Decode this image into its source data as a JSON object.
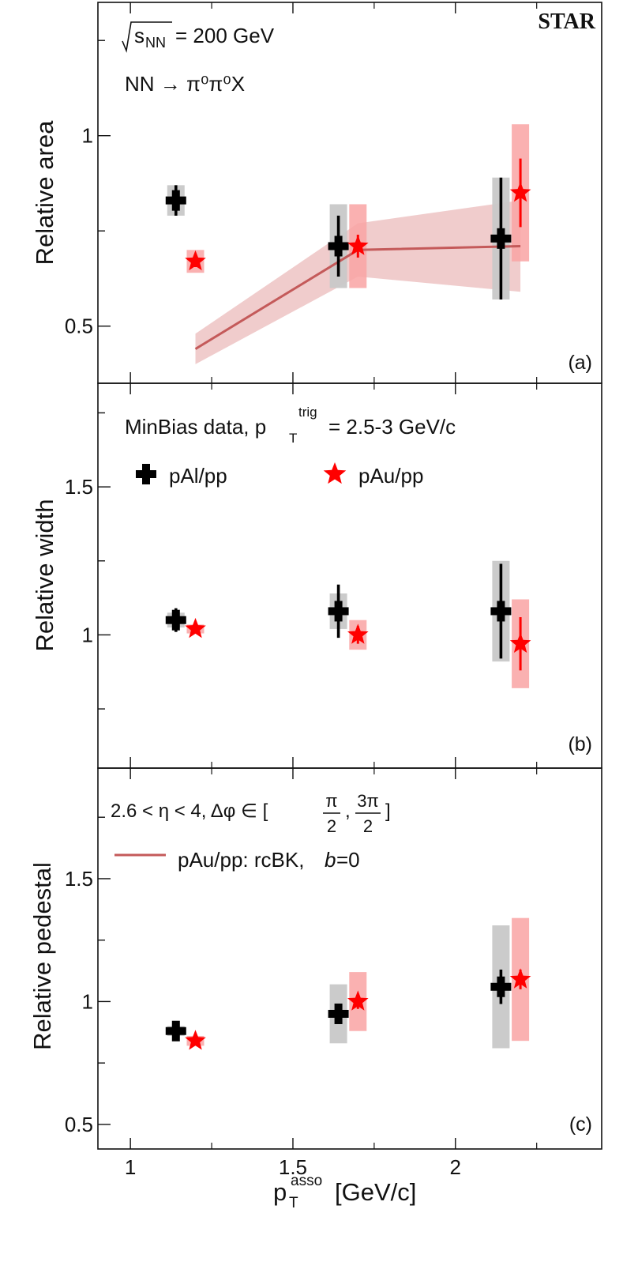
{
  "experiment": "STAR",
  "annotations": {
    "energy_s": "s",
    "energy_nn": "NN",
    "energy_val": "= 200 GeV",
    "process": "NN → π⁰π⁰X",
    "minbias_text": "MinBias data, p",
    "minbias_sub": "T",
    "minbias_sup": "trig",
    "minbias_val": "= 2.5-3 GeV/c",
    "cut_eta": "2.6 < η < 4, Δφ ∈ [",
    "cut_frac1_num": "π",
    "cut_frac1_den": "2",
    "cut_comma": ",",
    "cut_frac2_num": "3π",
    "cut_frac2_den": "2",
    "cut_close": "]",
    "legend_pal": "pAl/pp",
    "legend_pau": "pAu/pp",
    "legend_model": "pAu/pp: rcBK,",
    "legend_model_b": "b",
    "legend_model_eq": "=0"
  },
  "colors": {
    "pal": "#000000",
    "pal_sys": "#c8c8c8",
    "pau": "#ff0000",
    "pau_sys": "#f9a3a3",
    "model_line": "#c45a5a",
    "model_band": "#e3a3a3"
  },
  "chart_data": [
    {
      "type": "scatter",
      "panel": "(a)",
      "ylabel": "Relative area",
      "xlim": [
        0.9,
        2.45
      ],
      "ylim": [
        0.35,
        1.35
      ],
      "yticks": [
        0.5,
        1
      ],
      "ytick_labels": [
        "0.5",
        "1"
      ],
      "series": [
        {
          "name": "pAl/pp",
          "x": [
            1.14,
            1.64,
            2.14
          ],
          "y": [
            0.83,
            0.71,
            0.73
          ],
          "stat": [
            0.04,
            0.08,
            0.16
          ],
          "sys": [
            0.04,
            0.11,
            0.16
          ]
        },
        {
          "name": "pAu/pp",
          "x": [
            1.2,
            1.7,
            2.2
          ],
          "y": [
            0.67,
            0.71,
            0.85
          ],
          "stat": [
            0.015,
            0.03,
            0.09
          ],
          "sys": [
            0.03,
            0.11,
            0.18
          ]
        }
      ],
      "model": {
        "name": "pAu/pp: rcBK, b=0",
        "x": [
          1.2,
          1.7,
          2.2
        ],
        "y": [
          0.44,
          0.7,
          0.71
        ],
        "lo": [
          0.4,
          0.63,
          0.59
        ],
        "hi": [
          0.48,
          0.77,
          0.83
        ]
      }
    },
    {
      "type": "scatter",
      "panel": "(b)",
      "ylabel": "Relative width",
      "xlim": [
        0.9,
        2.45
      ],
      "ylim": [
        0.55,
        1.85
      ],
      "yticks": [
        1,
        1.5
      ],
      "ytick_labels": [
        "1",
        "1.5"
      ],
      "series": [
        {
          "name": "pAl/pp",
          "x": [
            1.14,
            1.64,
            2.14
          ],
          "y": [
            1.05,
            1.08,
            1.08
          ],
          "stat": [
            0.04,
            0.09,
            0.16
          ],
          "sys": [
            0.025,
            0.06,
            0.17
          ]
        },
        {
          "name": "pAu/pp",
          "x": [
            1.2,
            1.7,
            2.2
          ],
          "y": [
            1.02,
            1.0,
            0.97
          ],
          "stat": [
            0.01,
            0.03,
            0.09
          ],
          "sys": [
            0.015,
            0.05,
            0.15
          ]
        }
      ]
    },
    {
      "type": "scatter",
      "panel": "(c)",
      "ylabel": "Relative pedestal",
      "xlabel": "p",
      "xlabel_sub": "T",
      "xlabel_sup": "asso",
      "xlabel_unit": "[GeV/c]",
      "xlim": [
        0.9,
        2.45
      ],
      "ylim": [
        0.4,
        1.95
      ],
      "yticks": [
        0.5,
        1,
        1.5
      ],
      "ytick_labels": [
        "0.5",
        "1",
        "1.5"
      ],
      "xticks": [
        1,
        1.5,
        2
      ],
      "xtick_labels": [
        "1",
        "1.5",
        "2"
      ],
      "series": [
        {
          "name": "pAl/pp",
          "x": [
            1.14,
            1.64,
            2.14
          ],
          "y": [
            0.88,
            0.95,
            1.06
          ],
          "stat": [
            0.02,
            0.03,
            0.07
          ],
          "sys": [
            0.02,
            0.12,
            0.25
          ]
        },
        {
          "name": "pAu/pp",
          "x": [
            1.2,
            1.7,
            2.2
          ],
          "y": [
            0.84,
            1.0,
            1.09
          ],
          "stat": [
            0.01,
            0.03,
            0.04
          ],
          "sys": [
            0.02,
            0.12,
            0.25
          ]
        }
      ]
    }
  ]
}
